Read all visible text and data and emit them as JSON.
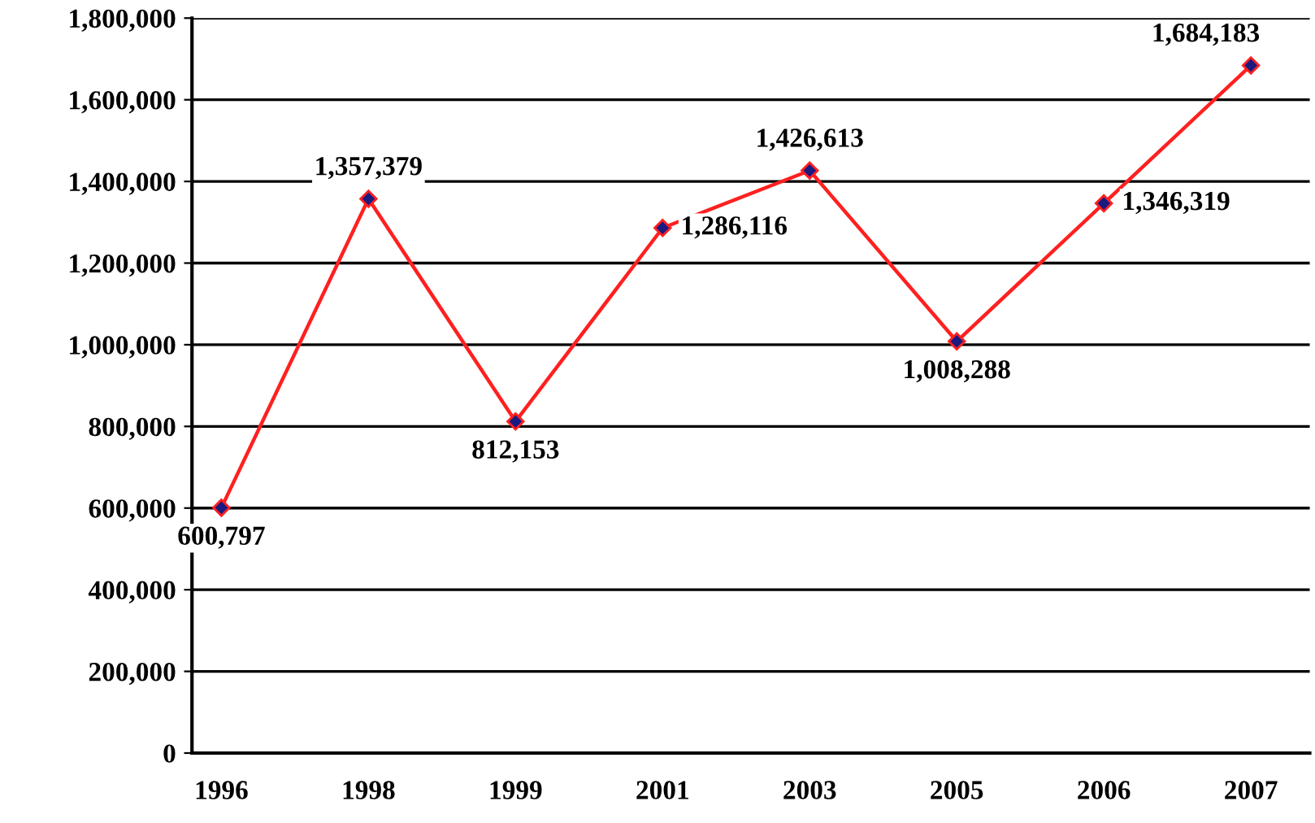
{
  "chart_data": {
    "type": "line",
    "categories": [
      "1996",
      "1998",
      "1999",
      "2001",
      "2003",
      "2005",
      "2006",
      "2007"
    ],
    "series": [
      {
        "color": "#ff2020",
        "values": [
          600797,
          1357379,
          812153,
          1286116,
          1426613,
          1008288,
          1346319,
          1684183
        ],
        "value_labels": [
          "600,797",
          "1,357,379",
          "812,153",
          "1,286,116",
          "1,426,613",
          "1,008,288",
          "1,346,319",
          "1,684,183"
        ]
      }
    ],
    "ylim": [
      0,
      1800000
    ],
    "yticks": [
      {
        "value": 0,
        "label": "0"
      },
      {
        "value": 200000,
        "label": "200,000"
      },
      {
        "value": 400000,
        "label": "400,000"
      },
      {
        "value": 600000,
        "label": "600,000"
      },
      {
        "value": 800000,
        "label": "800,000"
      },
      {
        "value": 1000000,
        "label": "1,000,000"
      },
      {
        "value": 1200000,
        "label": "1,200,000"
      },
      {
        "value": 1400000,
        "label": "1,400,000"
      },
      {
        "value": 1600000,
        "label": "1,600,000"
      },
      {
        "value": 1800000,
        "label": "1,800,000"
      }
    ],
    "grid": "y",
    "marker": "diamond",
    "line_style": "solid"
  }
}
